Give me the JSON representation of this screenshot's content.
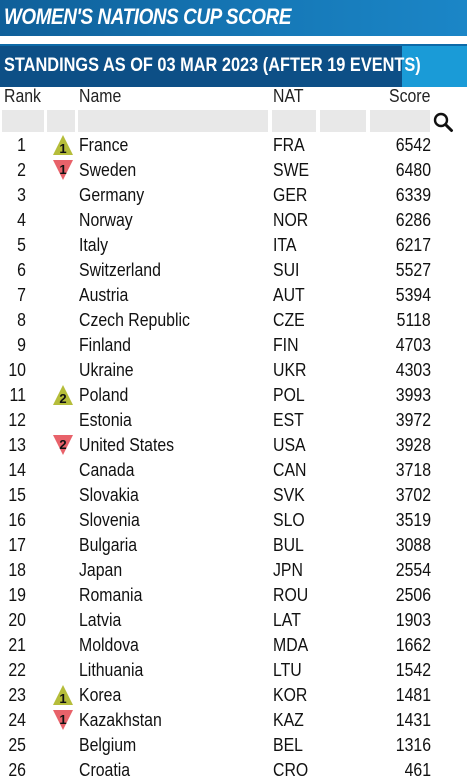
{
  "title": "WOMEN'S NATIONS CUP SCORE",
  "subtitle": "STANDINGS AS OF 03 MAR 2023 (AFTER 19 EVENTS)",
  "colors": {
    "title_bg": "#1679b8",
    "subtitle_bg": "#0d4f86",
    "accent": "#1a9bd7",
    "up": "#b5bd3a",
    "down": "#e8626a"
  },
  "columns": {
    "rank": "Rank",
    "name": "Name",
    "nat": "NAT",
    "score": "Score"
  },
  "rows": [
    {
      "rank": "1",
      "change": "up",
      "change_value": "1",
      "name": "France",
      "nat": "FRA",
      "score": "6542"
    },
    {
      "rank": "2",
      "change": "down",
      "change_value": "1",
      "name": "Sweden",
      "nat": "SWE",
      "score": "6480"
    },
    {
      "rank": "3",
      "change": "",
      "change_value": "",
      "name": "Germany",
      "nat": "GER",
      "score": "6339"
    },
    {
      "rank": "4",
      "change": "",
      "change_value": "",
      "name": "Norway",
      "nat": "NOR",
      "score": "6286"
    },
    {
      "rank": "5",
      "change": "",
      "change_value": "",
      "name": "Italy",
      "nat": "ITA",
      "score": "6217"
    },
    {
      "rank": "6",
      "change": "",
      "change_value": "",
      "name": "Switzerland",
      "nat": "SUI",
      "score": "5527"
    },
    {
      "rank": "7",
      "change": "",
      "change_value": "",
      "name": "Austria",
      "nat": "AUT",
      "score": "5394"
    },
    {
      "rank": "8",
      "change": "",
      "change_value": "",
      "name": "Czech Republic",
      "nat": "CZE",
      "score": "5118"
    },
    {
      "rank": "9",
      "change": "",
      "change_value": "",
      "name": "Finland",
      "nat": "FIN",
      "score": "4703"
    },
    {
      "rank": "10",
      "change": "",
      "change_value": "",
      "name": "Ukraine",
      "nat": "UKR",
      "score": "4303"
    },
    {
      "rank": "11",
      "change": "up",
      "change_value": "2",
      "name": "Poland",
      "nat": "POL",
      "score": "3993"
    },
    {
      "rank": "12",
      "change": "",
      "change_value": "",
      "name": "Estonia",
      "nat": "EST",
      "score": "3972"
    },
    {
      "rank": "13",
      "change": "down",
      "change_value": "2",
      "name": "United States",
      "nat": "USA",
      "score": "3928"
    },
    {
      "rank": "14",
      "change": "",
      "change_value": "",
      "name": "Canada",
      "nat": "CAN",
      "score": "3718"
    },
    {
      "rank": "15",
      "change": "",
      "change_value": "",
      "name": "Slovakia",
      "nat": "SVK",
      "score": "3702"
    },
    {
      "rank": "16",
      "change": "",
      "change_value": "",
      "name": "Slovenia",
      "nat": "SLO",
      "score": "3519"
    },
    {
      "rank": "17",
      "change": "",
      "change_value": "",
      "name": "Bulgaria",
      "nat": "BUL",
      "score": "3088"
    },
    {
      "rank": "18",
      "change": "",
      "change_value": "",
      "name": "Japan",
      "nat": "JPN",
      "score": "2554"
    },
    {
      "rank": "19",
      "change": "",
      "change_value": "",
      "name": "Romania",
      "nat": "ROU",
      "score": "2506"
    },
    {
      "rank": "20",
      "change": "",
      "change_value": "",
      "name": "Latvia",
      "nat": "LAT",
      "score": "1903"
    },
    {
      "rank": "21",
      "change": "",
      "change_value": "",
      "name": "Moldova",
      "nat": "MDA",
      "score": "1662"
    },
    {
      "rank": "22",
      "change": "",
      "change_value": "",
      "name": "Lithuania",
      "nat": "LTU",
      "score": "1542"
    },
    {
      "rank": "23",
      "change": "up",
      "change_value": "1",
      "name": "Korea",
      "nat": "KOR",
      "score": "1481"
    },
    {
      "rank": "24",
      "change": "down",
      "change_value": "1",
      "name": "Kazakhstan",
      "nat": "KAZ",
      "score": "1431"
    },
    {
      "rank": "25",
      "change": "",
      "change_value": "",
      "name": "Belgium",
      "nat": "BEL",
      "score": "1316"
    },
    {
      "rank": "26",
      "change": "",
      "change_value": "",
      "name": "Croatia",
      "nat": "CRO",
      "score": "461"
    }
  ]
}
